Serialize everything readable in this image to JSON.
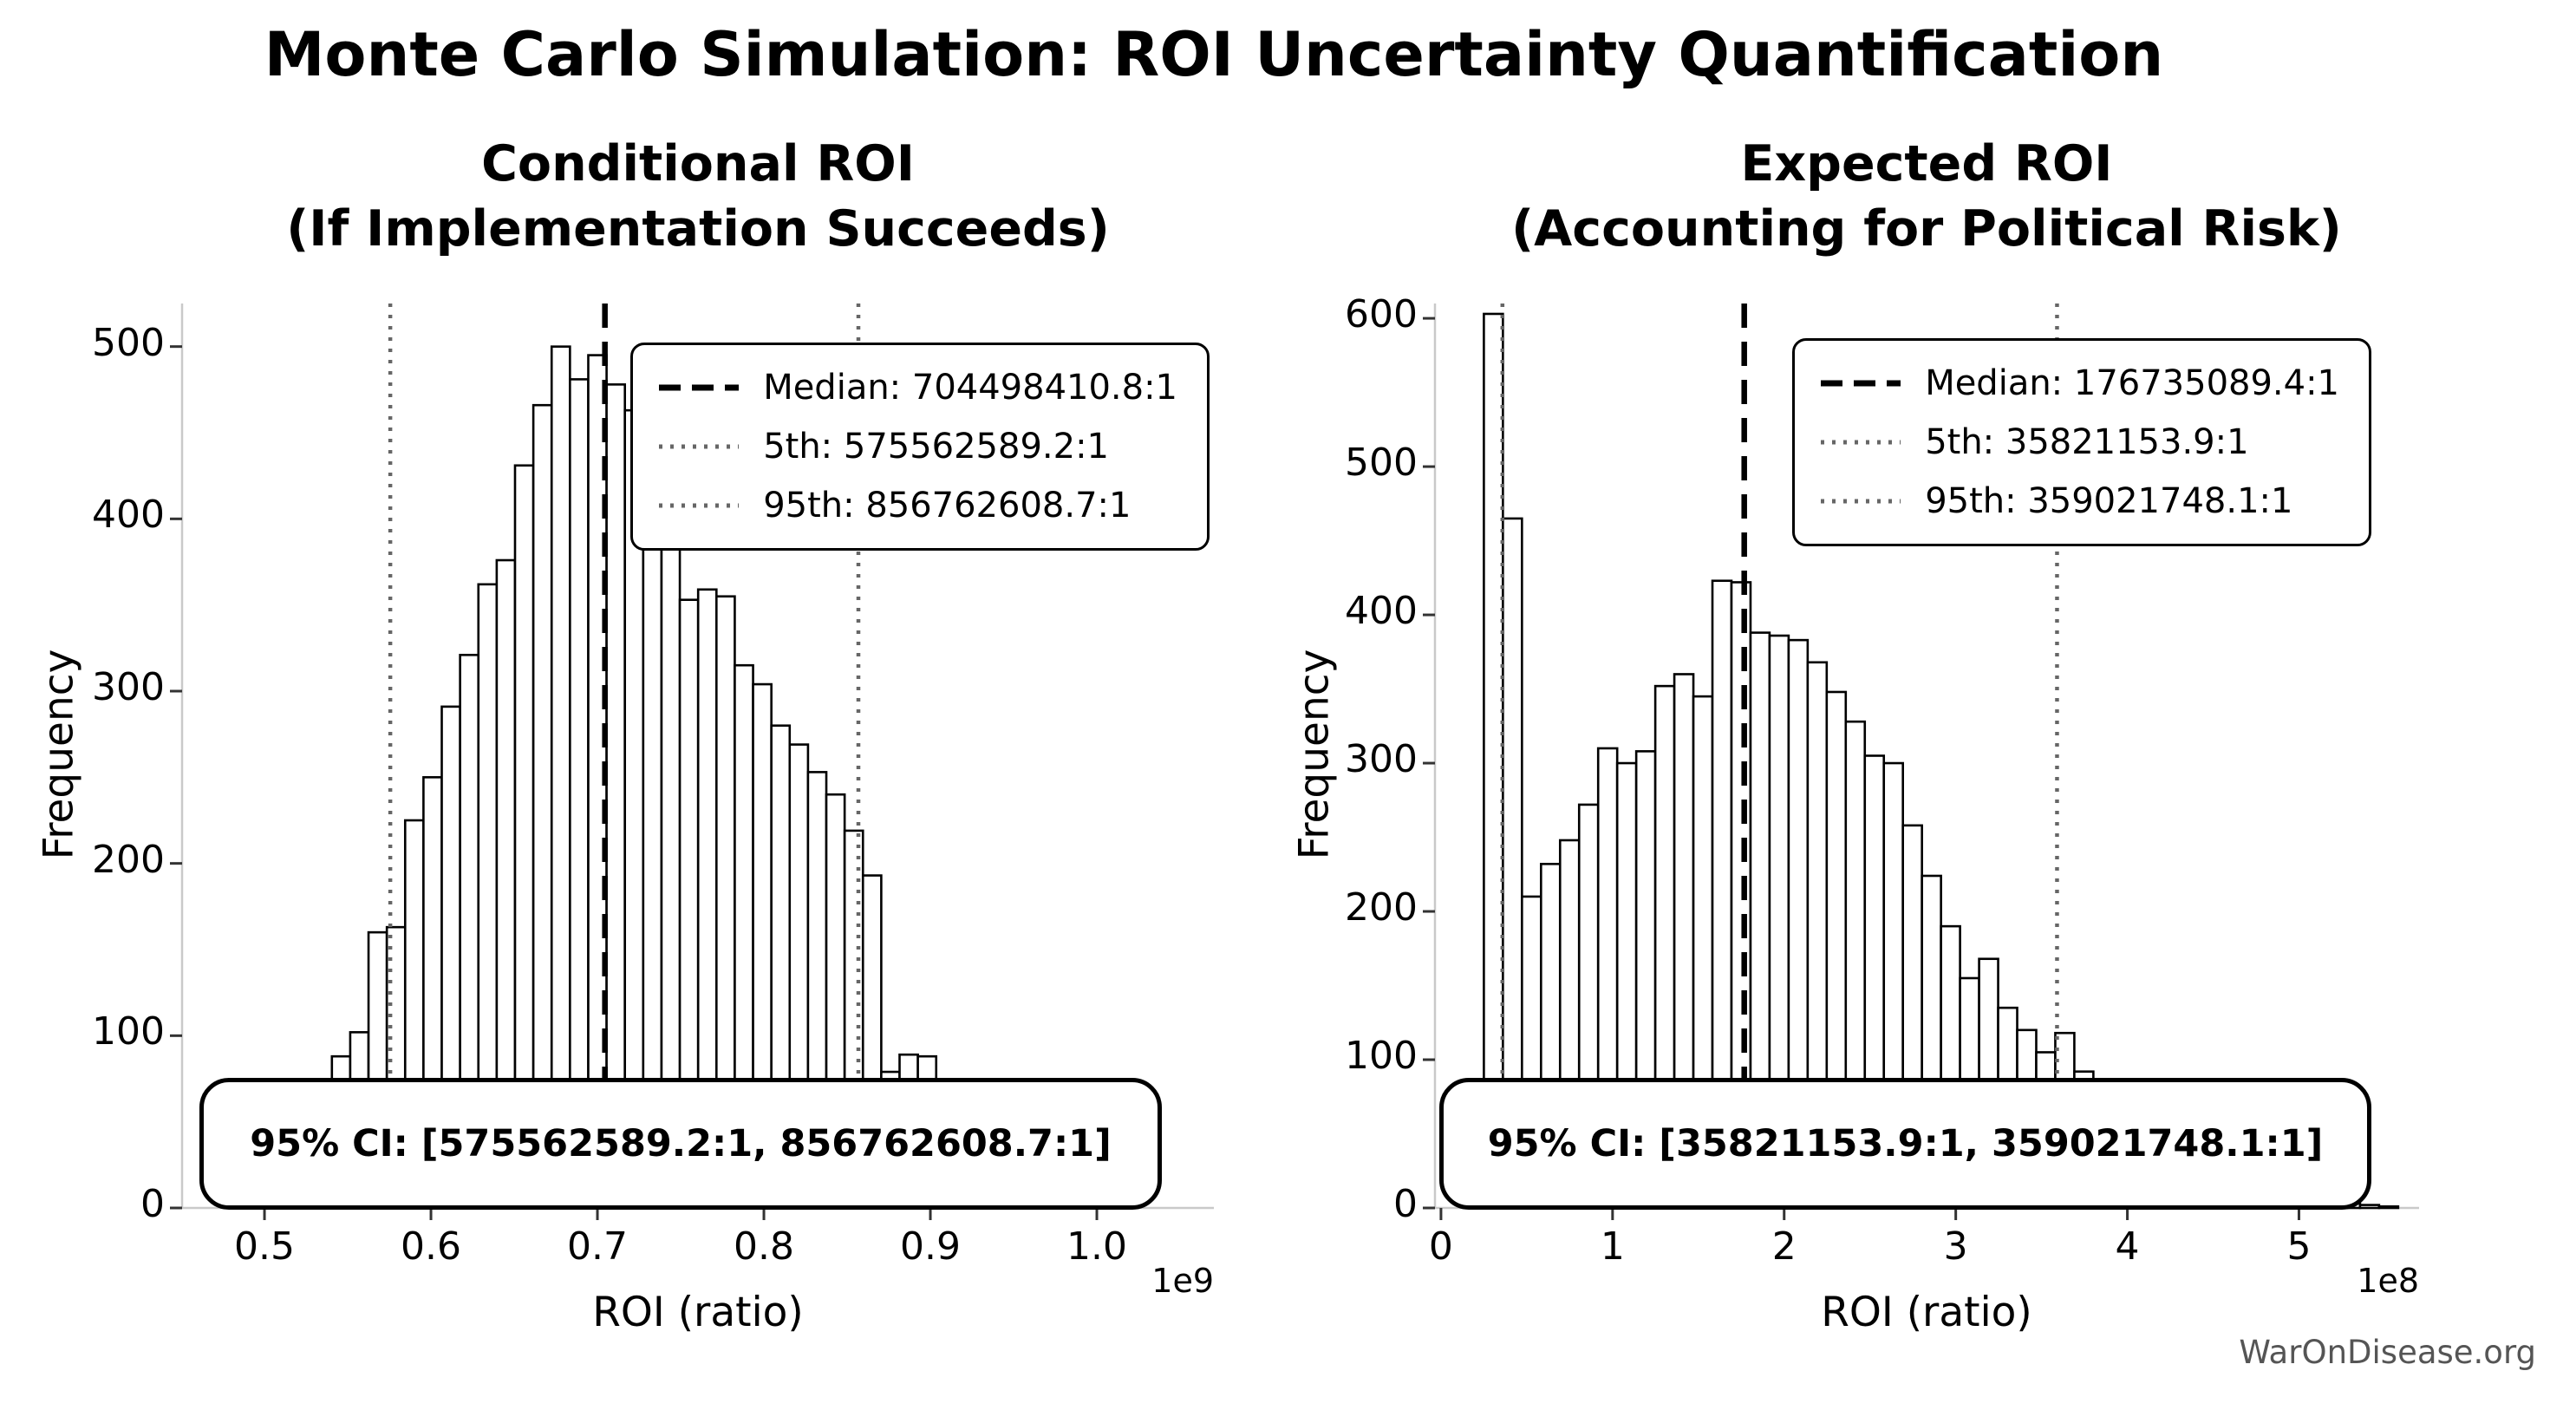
{
  "figure": {
    "suptitle": "Monte Carlo Simulation: ROI Uncertainty Quantification",
    "watermark": "WarOnDisease.org",
    "colors": {
      "background": "#ffffff",
      "bar_fill": "#ffffff",
      "bar_edge": "#000000",
      "median_line": "#000000",
      "percentile_line": "#666666",
      "spine": "#c9c9c9",
      "tick": "#333333",
      "text": "#000000",
      "watermark": "#555555"
    }
  },
  "chart_data": [
    {
      "type": "bar",
      "subtype": "histogram",
      "title_line1": "Conditional ROI",
      "title_line2": "(If Implementation Succeeds)",
      "xlabel": "ROI (ratio)",
      "ylabel": "Frequency",
      "x_offset_label": "1e9",
      "x_unit_exponent": 9,
      "xlim": [
        0.4505,
        1.0703
      ],
      "ylim": [
        0,
        525
      ],
      "xticks": [
        "0.5",
        "0.6",
        "0.7",
        "0.8",
        "0.9",
        "1.0"
      ],
      "xtick_values": [
        0.5,
        0.6,
        0.7,
        0.8,
        0.9,
        1.0
      ],
      "yticks": [
        0,
        100,
        200,
        300,
        400,
        500
      ],
      "bin_start": 0.4855,
      "bin_width": 0.011,
      "counts": [
        5,
        9,
        15,
        21,
        28,
        88,
        102,
        160,
        163,
        225,
        250,
        291,
        321,
        362,
        376,
        431,
        466,
        500,
        481,
        495,
        478,
        463,
        411,
        396,
        353,
        359,
        355,
        315,
        304,
        280,
        269,
        253,
        240,
        219,
        193,
        79,
        89,
        88,
        55,
        33,
        15,
        8,
        5,
        4,
        3,
        2,
        1,
        1
      ],
      "stats": {
        "median": 0.7044984108,
        "p5": 0.5755625892,
        "p95": 0.8567626087
      },
      "legend": [
        {
          "style": "dashed",
          "label": "Median: 704498410.8:1"
        },
        {
          "style": "dotted",
          "label": "5th: 575562589.2:1"
        },
        {
          "style": "dotted",
          "label": "95th: 856762608.7:1"
        }
      ],
      "ci_label": "95% CI: [575562589.2:1, 856762608.7:1]"
    },
    {
      "type": "bar",
      "subtype": "histogram",
      "title_line1": "Expected ROI",
      "title_line2": "(Accounting for Political Risk)",
      "xlabel": "ROI (ratio)",
      "ylabel": "Frequency",
      "x_offset_label": "1e8",
      "x_unit_exponent": 8,
      "xlim": [
        -0.035,
        5.7
      ],
      "ylim": [
        0,
        610
      ],
      "xticks": [
        "0",
        "1",
        "2",
        "3",
        "4",
        "5"
      ],
      "xtick_values": [
        0,
        1,
        2,
        3,
        4,
        5
      ],
      "yticks": [
        0,
        100,
        200,
        300,
        400,
        500,
        600
      ],
      "bin_start": 0.25,
      "bin_width": 0.111,
      "counts": [
        603,
        465,
        210,
        232,
        248,
        272,
        310,
        300,
        308,
        352,
        360,
        345,
        423,
        422,
        388,
        386,
        383,
        368,
        348,
        328,
        305,
        300,
        258,
        224,
        190,
        155,
        168,
        135,
        120,
        105,
        118,
        92,
        80,
        70,
        60,
        50,
        42,
        35,
        28,
        22,
        18,
        14,
        11,
        8,
        5,
        3,
        2,
        1
      ],
      "stats": {
        "median": 1.767350894,
        "p5": 0.358211539,
        "p95": 3.590217481
      },
      "legend": [
        {
          "style": "dashed",
          "label": "Median: 176735089.4:1"
        },
        {
          "style": "dotted",
          "label": "5th: 35821153.9:1"
        },
        {
          "style": "dotted",
          "label": "95th: 359021748.1:1"
        }
      ],
      "ci_label": "95% CI: [35821153.9:1, 359021748.1:1]"
    }
  ]
}
